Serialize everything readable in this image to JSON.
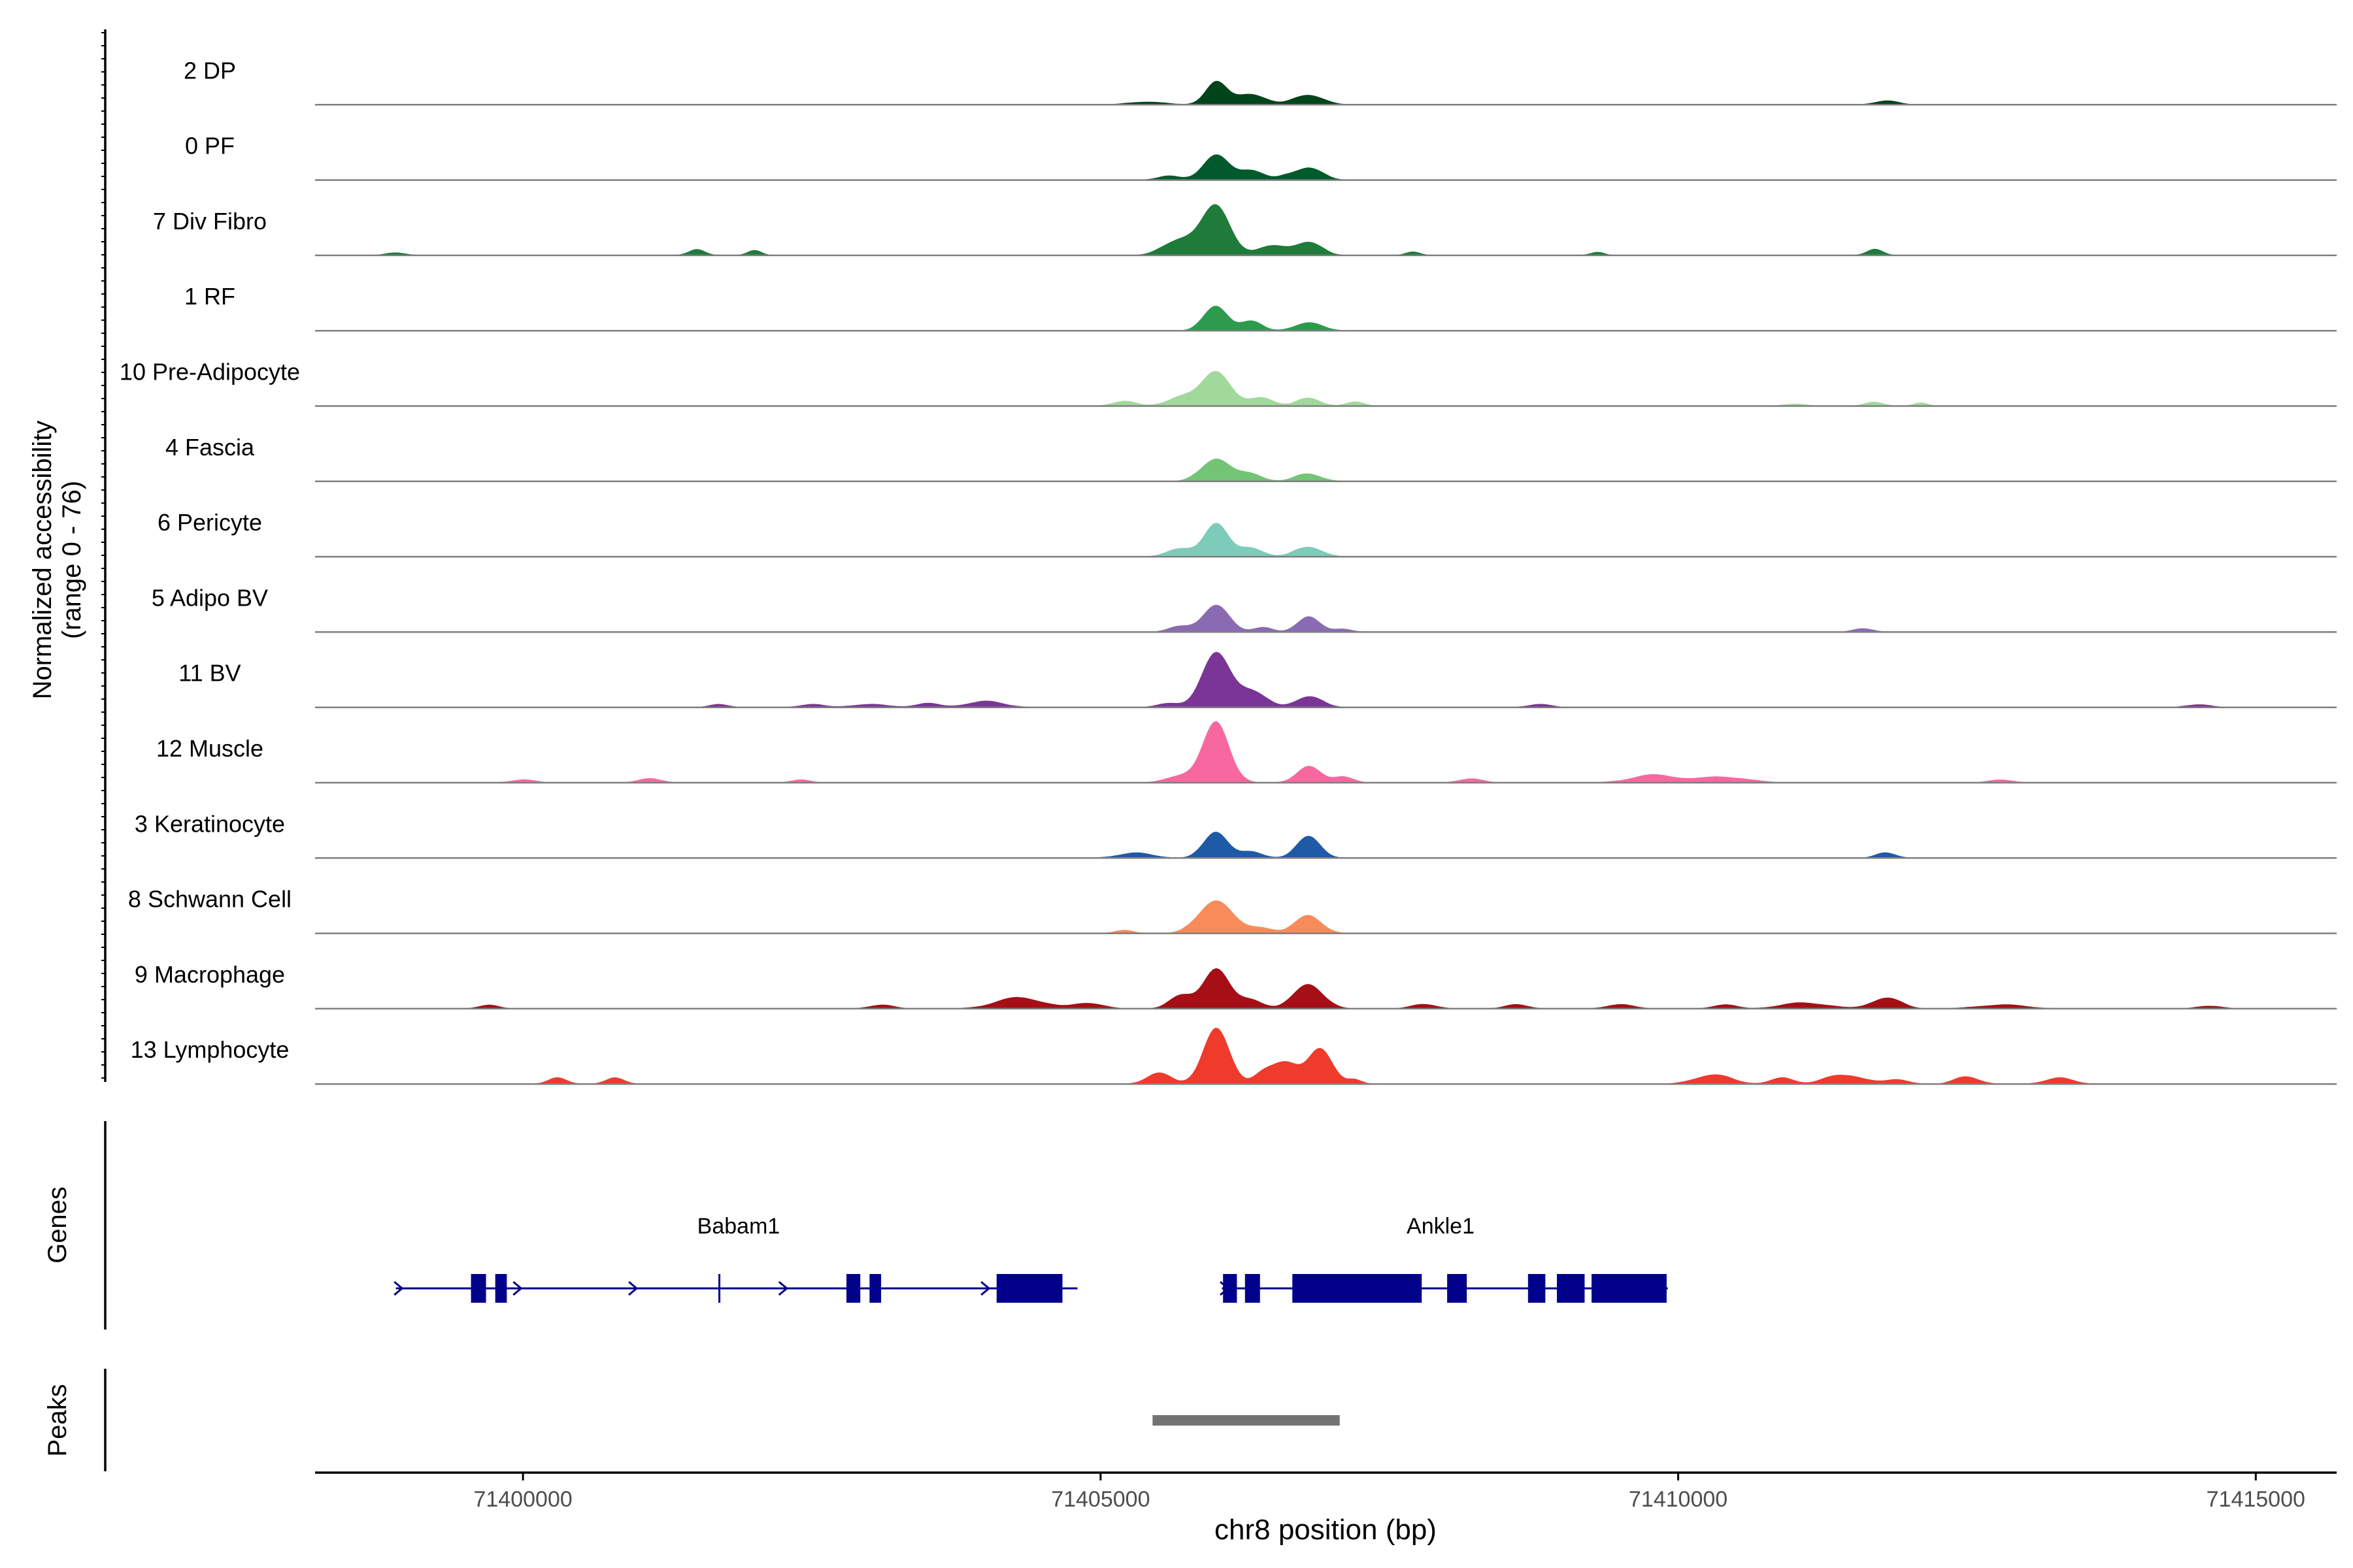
{
  "chart_data": {
    "type": "area",
    "title": "",
    "ylabel_line1": "Normalized accessibility",
    "ylabel_line2": "(range 0 - 76)",
    "xlabel": "chr8 position (bp)",
    "xlim": [
      71398200,
      71415700
    ],
    "ylim": [
      0,
      76
    ],
    "x_ticks": [
      71400000,
      71405000,
      71410000,
      71415000
    ],
    "x_tick_labels": [
      "71400000",
      "71405000",
      "71410000",
      "71415000"
    ],
    "tracks": [
      {
        "name": "2 DP",
        "color": "#00441b",
        "peaks": [
          [
            71406000,
            26,
            90
          ],
          [
            71406300,
            12,
            120
          ],
          [
            71406800,
            11,
            120
          ],
          [
            71405400,
            3,
            150
          ],
          [
            71411800,
            4,
            100
          ]
        ]
      },
      {
        "name": "0 PF",
        "color": "#005a2b",
        "peaks": [
          [
            71406000,
            28,
            110
          ],
          [
            71406300,
            11,
            100
          ],
          [
            71406800,
            14,
            110
          ],
          [
            71405600,
            4,
            100
          ],
          [
            71406600,
            3,
            80
          ]
        ]
      },
      {
        "name": "7 Div Fibro",
        "color": "#1e7b3a",
        "peaks": [
          [
            71406000,
            56,
            120
          ],
          [
            71405700,
            18,
            140
          ],
          [
            71406500,
            10,
            130
          ],
          [
            71406800,
            14,
            110
          ],
          [
            71401500,
            6,
            70
          ],
          [
            71402000,
            5,
            60
          ],
          [
            71398900,
            3,
            80
          ],
          [
            71411700,
            6,
            70
          ],
          [
            71407700,
            4,
            60
          ],
          [
            71409300,
            3,
            60
          ]
        ]
      },
      {
        "name": "1 RF",
        "color": "#2e9a4d",
        "peaks": [
          [
            71406000,
            28,
            100
          ],
          [
            71406300,
            10,
            90
          ],
          [
            71406800,
            8,
            120
          ]
        ]
      },
      {
        "name": "10 Pre-Adipocyte",
        "color": "#a1d99b",
        "peaks": [
          [
            71406000,
            40,
            120
          ],
          [
            71405700,
            10,
            120
          ],
          [
            71406400,
            9,
            100
          ],
          [
            71406800,
            8,
            100
          ],
          [
            71405200,
            5,
            100
          ],
          [
            71407200,
            4,
            80
          ],
          [
            71411700,
            4,
            80
          ],
          [
            71412100,
            3,
            60
          ],
          [
            71411000,
            2,
            100
          ]
        ]
      },
      {
        "name": "4 Fascia",
        "color": "#74c476",
        "peaks": [
          [
            71406000,
            26,
            120
          ],
          [
            71406300,
            8,
            100
          ],
          [
            71406800,
            8,
            110
          ]
        ]
      },
      {
        "name": "6 Pericyte",
        "color": "#7dccb9",
        "peaks": [
          [
            71406000,
            38,
            100
          ],
          [
            71405700,
            8,
            120
          ],
          [
            71406300,
            10,
            100
          ],
          [
            71406800,
            11,
            110
          ]
        ]
      },
      {
        "name": "5 Adipo BV",
        "color": "#8a6bb3",
        "peaks": [
          [
            71406000,
            30,
            110
          ],
          [
            71406800,
            18,
            90
          ],
          [
            71405700,
            6,
            100
          ],
          [
            71406400,
            5,
            80
          ],
          [
            71411600,
            4,
            80
          ],
          [
            71407100,
            3,
            80
          ]
        ]
      },
      {
        "name": "11 BV",
        "color": "#7a3596",
        "peaks": [
          [
            71406000,
            62,
            120
          ],
          [
            71406300,
            18,
            120
          ],
          [
            71406800,
            12,
            110
          ],
          [
            71405600,
            4,
            100
          ],
          [
            71404000,
            6,
            160
          ],
          [
            71403500,
            4,
            100
          ],
          [
            71402500,
            3,
            100
          ],
          [
            71401700,
            3,
            80
          ],
          [
            71403000,
            3,
            160
          ],
          [
            71414500,
            3,
            100
          ],
          [
            71408800,
            3,
            100
          ]
        ]
      },
      {
        "name": "12 Muscle",
        "color": "#f768a1",
        "peaks": [
          [
            71406000,
            70,
            110
          ],
          [
            71406800,
            18,
            100
          ],
          [
            71405700,
            8,
            120
          ],
          [
            71407100,
            7,
            80
          ],
          [
            71409800,
            8,
            200
          ],
          [
            71410400,
            6,
            200
          ],
          [
            71408200,
            4,
            100
          ],
          [
            71401100,
            4,
            100
          ],
          [
            71400000,
            3,
            100
          ],
          [
            71412800,
            3,
            100
          ],
          [
            71402400,
            3,
            80
          ]
        ]
      },
      {
        "name": "3 Keratinocyte",
        "color": "#1f5aa6",
        "peaks": [
          [
            71406000,
            30,
            100
          ],
          [
            71406800,
            24,
            100
          ],
          [
            71405300,
            5,
            150
          ],
          [
            71411800,
            6,
            80
          ],
          [
            71406300,
            6,
            100
          ]
        ]
      },
      {
        "name": "8 Schwann Cell",
        "color": "#f78c5a",
        "peaks": [
          [
            71406000,
            38,
            140
          ],
          [
            71406800,
            20,
            110
          ],
          [
            71406400,
            6,
            100
          ],
          [
            71405200,
            3,
            80
          ]
        ]
      },
      {
        "name": "9 Macrophage",
        "color": "#a50f15",
        "peaks": [
          [
            71406000,
            46,
            110
          ],
          [
            71406800,
            28,
            120
          ],
          [
            71405700,
            14,
            100
          ],
          [
            71406300,
            10,
            100
          ],
          [
            71404300,
            12,
            200
          ],
          [
            71404900,
            6,
            120
          ],
          [
            71411800,
            12,
            120
          ],
          [
            71411100,
            6,
            200
          ],
          [
            71409500,
            4,
            120
          ],
          [
            71399700,
            4,
            80
          ],
          [
            71403100,
            4,
            100
          ],
          [
            71407800,
            5,
            100
          ],
          [
            71408600,
            4,
            100
          ],
          [
            71410400,
            4,
            100
          ],
          [
            71412800,
            4,
            200
          ],
          [
            71414600,
            3,
            100
          ]
        ]
      },
      {
        "name": "13 Lymphocyte",
        "color": "#ef3b2c",
        "peaks": [
          [
            71406000,
            64,
            110
          ],
          [
            71406900,
            40,
            100
          ],
          [
            71406600,
            24,
            120
          ],
          [
            71405500,
            12,
            100
          ],
          [
            71406400,
            10,
            80
          ],
          [
            71400300,
            6,
            80
          ],
          [
            71400800,
            6,
            80
          ],
          [
            71410300,
            10,
            150
          ],
          [
            71411500,
            8,
            150
          ],
          [
            71412500,
            8,
            100
          ],
          [
            71413300,
            6,
            120
          ],
          [
            71410900,
            6,
            100
          ],
          [
            71407200,
            5,
            60
          ],
          [
            71411300,
            4,
            100
          ],
          [
            71411900,
            4,
            100
          ]
        ]
      }
    ],
    "genes": [
      {
        "name": "Babam1",
        "strand": "+",
        "start": 71398900,
        "end": 71404800,
        "exons": [
          [
            71399550,
            71399680
          ],
          [
            71399760,
            71399860
          ],
          [
            71402800,
            71402920
          ],
          [
            71403000,
            71403100
          ],
          [
            71404100,
            71404670
          ]
        ],
        "arrows": [
          71398920,
          71399950,
          71400950,
          71402250,
          71404000
        ],
        "tss_marks": [
          71401700
        ]
      },
      {
        "name": "Ankle1",
        "strand": "+",
        "start": 71406050,
        "end": 71409910,
        "exons": [
          [
            71406060,
            71406180
          ],
          [
            71406250,
            71406380
          ],
          [
            71406660,
            71407780
          ],
          [
            71408000,
            71408170
          ],
          [
            71408700,
            71408850
          ],
          [
            71408950,
            71409190
          ],
          [
            71409250,
            71409900
          ]
        ],
        "arrows": [
          71406070
        ]
      }
    ],
    "peaks_track": {
      "label": "Peaks",
      "regions": [
        [
          71405450,
          71407070
        ]
      ],
      "color": "#737373"
    },
    "genes_label": "Genes",
    "peaks_label": "Peaks"
  }
}
